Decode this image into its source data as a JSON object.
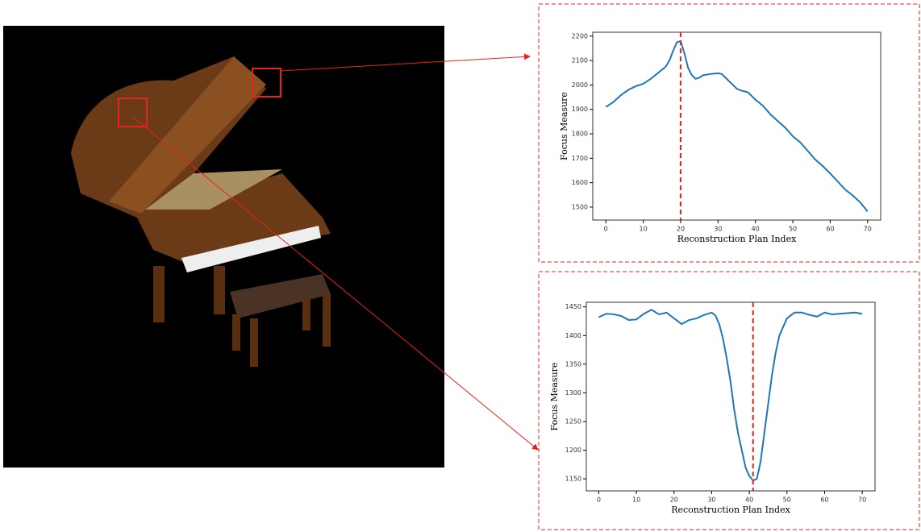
{
  "chart_data": [
    {
      "type": "line",
      "x_label": "Reconstruction Plan Index",
      "y_label": "Focus Measure",
      "x": [
        0,
        2,
        4,
        6,
        8,
        10,
        12,
        14,
        16,
        17,
        18,
        19,
        20,
        21,
        22,
        23,
        24,
        25,
        26,
        28,
        30,
        31,
        32,
        34,
        35,
        36,
        38,
        40,
        42,
        44,
        46,
        48,
        50,
        52,
        54,
        56,
        58,
        60,
        62,
        64,
        66,
        68,
        70
      ],
      "series": [
        {
          "color": "#1f77b4",
          "values": [
            1910,
            1930,
            1958,
            1980,
            1995,
            2005,
            2025,
            2050,
            2075,
            2100,
            2140,
            2175,
            2180,
            2130,
            2070,
            2040,
            2025,
            2030,
            2040,
            2045,
            2048,
            2045,
            2030,
            2000,
            1985,
            1978,
            1970,
            1940,
            1915,
            1880,
            1852,
            1825,
            1790,
            1765,
            1730,
            1695,
            1668,
            1638,
            1605,
            1572,
            1548,
            1520,
            1482
          ]
        }
      ],
      "vline": 20,
      "vline_color": "#e8231f",
      "xlim": [
        -3.5,
        73.5
      ],
      "xticks": [
        0,
        10,
        20,
        30,
        40,
        50,
        60,
        70
      ],
      "ylim": [
        1447,
        2216
      ],
      "yticks": [
        1500,
        1600,
        1700,
        1800,
        1900,
        2000,
        2100,
        2200
      ]
    },
    {
      "type": "line",
      "x_label": "Reconstruction Plan Index",
      "y_label": "Focus Measure",
      "x": [
        0,
        2,
        4,
        6,
        8,
        10,
        12,
        14,
        16,
        18,
        19,
        21,
        22,
        24,
        26,
        28,
        30,
        31,
        32,
        33,
        34,
        35,
        36,
        37,
        38,
        39,
        40,
        41,
        42,
        43,
        44,
        45,
        46,
        47,
        48,
        49,
        50,
        52,
        54,
        56,
        58,
        60,
        62,
        64,
        66,
        68,
        70
      ],
      "series": [
        {
          "color": "#1f77b4",
          "values": [
            1432,
            1438,
            1437,
            1434,
            1427,
            1428,
            1438,
            1445,
            1437,
            1440,
            1435,
            1425,
            1420,
            1427,
            1430,
            1436,
            1440,
            1435,
            1420,
            1395,
            1360,
            1320,
            1270,
            1230,
            1200,
            1170,
            1155,
            1147,
            1150,
            1180,
            1230,
            1280,
            1330,
            1370,
            1400,
            1415,
            1430,
            1440,
            1440,
            1436,
            1433,
            1440,
            1437,
            1438,
            1439,
            1440,
            1438
          ]
        }
      ],
      "vline": 41,
      "vline_color": "#e8231f",
      "xlim": [
        -3.3,
        73.4
      ],
      "xticks": [
        0,
        10,
        20,
        30,
        40,
        50,
        60,
        70
      ],
      "ylim": [
        1129,
        1458
      ],
      "yticks": [
        1150,
        1200,
        1250,
        1300,
        1350,
        1400,
        1450
      ]
    }
  ]
}
